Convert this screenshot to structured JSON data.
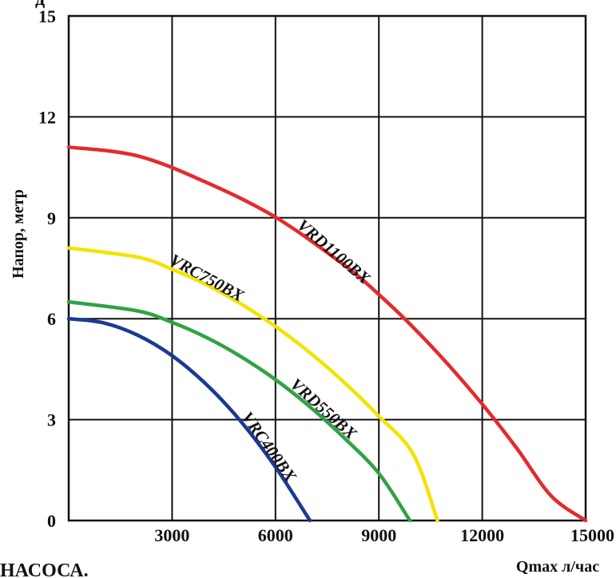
{
  "chart_data": {
    "type": "line",
    "title": "",
    "xlabel": "Qmax л/час",
    "ylabel": "Напор, метр",
    "xlim": [
      0,
      15000
    ],
    "ylim": [
      0,
      15
    ],
    "xticks": [
      3000,
      6000,
      9000,
      12000,
      15000
    ],
    "yticks": [
      0,
      3,
      6,
      9,
      12,
      15
    ],
    "xtick_labels": [
      "3000",
      "6000",
      "9000",
      "12000",
      "15000"
    ],
    "ytick_labels": [
      "0",
      "3",
      "6",
      "9",
      "12",
      "15"
    ],
    "grid": true,
    "series": [
      {
        "name": "VRC400BX",
        "color": "#1b3a93",
        "x": [
          0,
          1000,
          2000,
          3000,
          4000,
          5000,
          6000,
          7000
        ],
        "y": [
          6.0,
          5.88,
          5.51,
          4.9,
          4.04,
          2.94,
          1.59,
          0.0
        ]
      },
      {
        "name": "VRD550BX",
        "color": "#2fa343",
        "x": [
          0,
          2000,
          3000,
          4000,
          5000,
          6000,
          7000,
          8000,
          9000,
          9900
        ],
        "y": [
          6.5,
          6.23,
          5.89,
          5.44,
          4.87,
          4.19,
          3.38,
          2.45,
          1.4,
          0.0
        ]
      },
      {
        "name": "VRC750BX",
        "color": "#f2e400",
        "x": [
          0,
          2000,
          3000,
          4000,
          5000,
          6000,
          7000,
          8000,
          9000,
          10000,
          10700
        ],
        "y": [
          8.1,
          7.83,
          7.47,
          7.01,
          6.44,
          5.77,
          4.99,
          4.1,
          3.1,
          1.97,
          0.0
        ]
      },
      {
        "name": "VRD1100BX",
        "color": "#e32b2b",
        "x": [
          0,
          2000,
          4000,
          6000,
          8000,
          9000,
          10000,
          11000,
          12000,
          13000,
          14000,
          15000
        ],
        "y": [
          11.1,
          10.84,
          10.05,
          9.02,
          7.59,
          6.72,
          5.74,
          4.65,
          3.46,
          2.15,
          0.73,
          0.0
        ]
      }
    ]
  },
  "fragments": {
    "top_left": "д",
    "bottom_left": "НАСОСА."
  }
}
